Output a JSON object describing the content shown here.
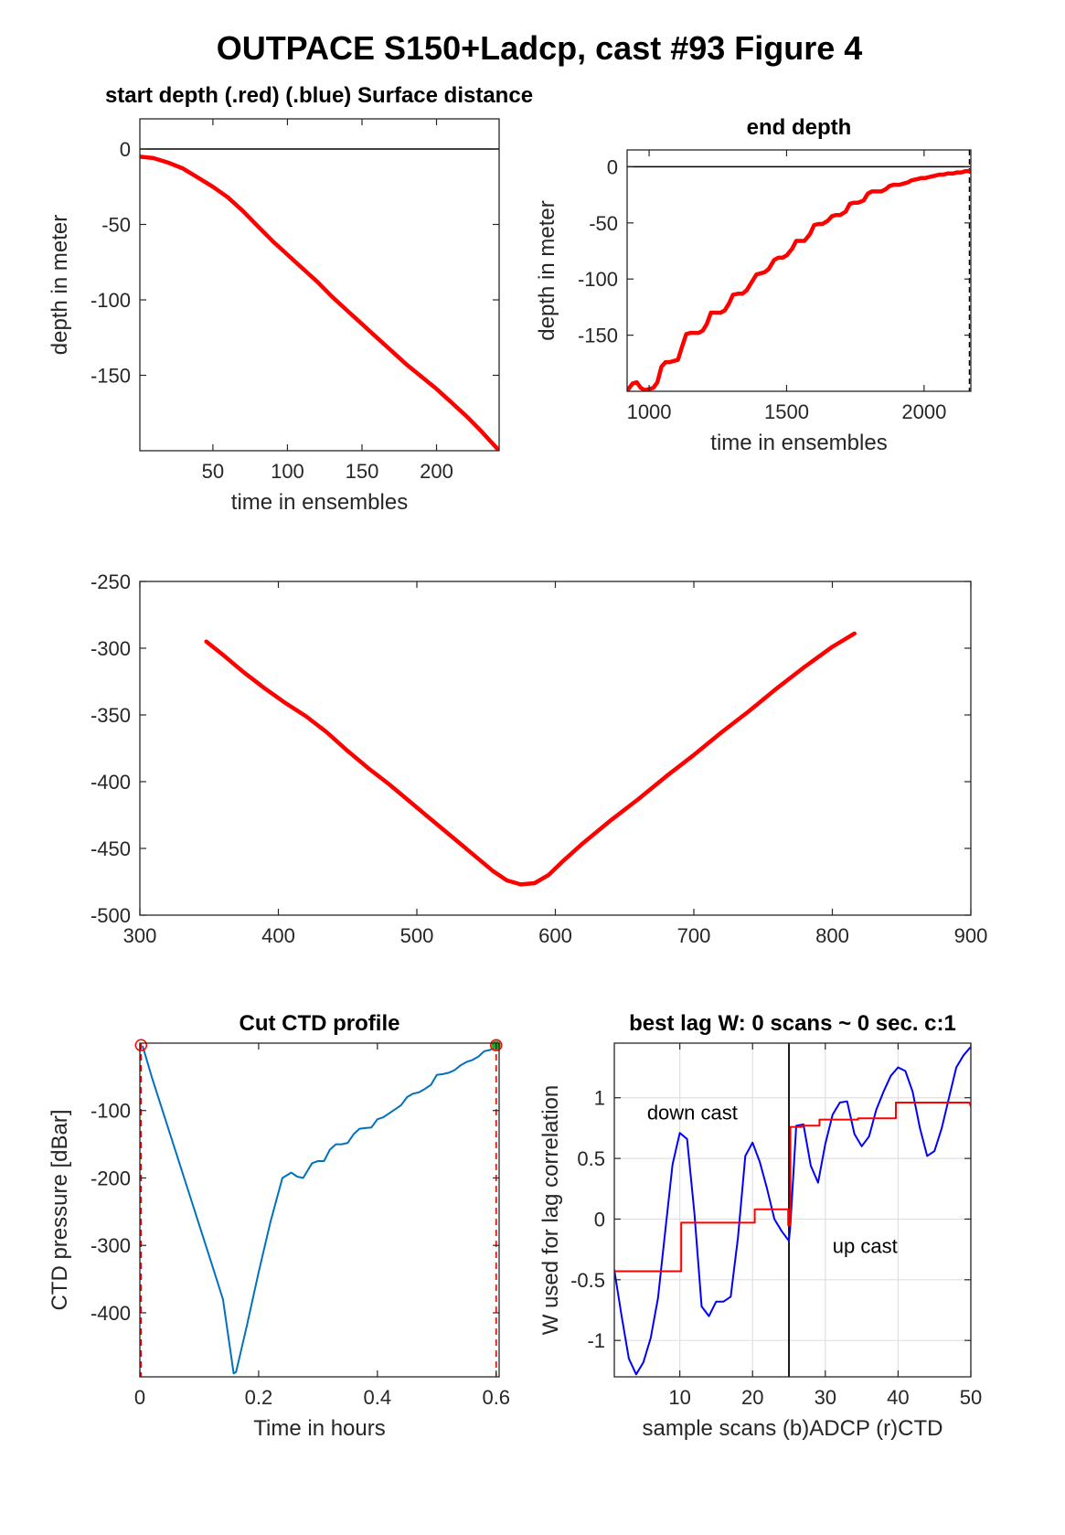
{
  "title": "OUTPACE S150+Ladcp, cast #93   Figure 4",
  "chart_data": [
    {
      "id": "start-depth",
      "type": "line",
      "title": "start depth (.red) (.blue) Surface distance",
      "xlabel": "time in ensembles",
      "ylabel": "depth in meter",
      "xlim": [
        1,
        242
      ],
      "ylim": [
        -200,
        20
      ],
      "xticks": [
        50,
        100,
        150,
        200
      ],
      "yticks": [
        0,
        -50,
        -100,
        -150
      ],
      "ref_line_y": 0,
      "color": "#ff0000",
      "series": [
        {
          "x": [
            1,
            10,
            20,
            30,
            40,
            50,
            60,
            70,
            80,
            90,
            100,
            110,
            120,
            130,
            140,
            150,
            160,
            170,
            180,
            190,
            200,
            210,
            220,
            230,
            242
          ],
          "y": [
            -5,
            -6,
            -9,
            -13,
            -19,
            -25,
            -32,
            -41,
            -51,
            -61,
            -70,
            -79,
            -88,
            -98,
            -107,
            -116,
            -125,
            -134,
            -143,
            -151,
            -159,
            -168,
            -177,
            -187,
            -200
          ]
        }
      ]
    },
    {
      "id": "end-depth",
      "type": "line",
      "title": "end depth",
      "xlabel": "time in ensembles",
      "ylabel": "depth in meter",
      "xlim": [
        920,
        2170
      ],
      "ylim": [
        -200,
        15
      ],
      "xticks": [
        1000,
        1500,
        2000
      ],
      "yticks": [
        0,
        -50,
        -100,
        -150
      ],
      "ref_line_y": 0,
      "vline_x": 2165,
      "color": "#ff0000",
      "series": [
        {
          "x": [
            925,
            940,
            955,
            970,
            985,
            1000,
            1015,
            1030,
            1045,
            1060,
            1075,
            1090,
            1105,
            1120,
            1135,
            1150,
            1165,
            1180,
            1195,
            1210,
            1225,
            1240,
            1260,
            1275,
            1290,
            1305,
            1325,
            1340,
            1355,
            1370,
            1390,
            1405,
            1420,
            1435,
            1455,
            1470,
            1485,
            1500,
            1520,
            1535,
            1550,
            1565,
            1585,
            1600,
            1615,
            1630,
            1650,
            1665,
            1680,
            1695,
            1715,
            1730,
            1745,
            1760,
            1780,
            1795,
            1810,
            1825,
            1845,
            1860,
            1875,
            1890,
            1910,
            1925,
            1940,
            1955,
            1975,
            1990,
            2005,
            2020,
            2040,
            2055,
            2070,
            2085,
            2105,
            2120,
            2135,
            2150,
            2160,
            2165
          ],
          "y": [
            -198,
            -193,
            -192,
            -197,
            -199,
            -198,
            -197,
            -192,
            -178,
            -174,
            -174,
            -173,
            -172,
            -160,
            -149,
            -148,
            -148,
            -148,
            -146,
            -140,
            -130,
            -130,
            -130,
            -128,
            -122,
            -114,
            -113,
            -113,
            -110,
            -104,
            -96,
            -95,
            -94,
            -91,
            -83,
            -81,
            -81,
            -79,
            -73,
            -66,
            -66,
            -66,
            -60,
            -52,
            -51,
            -51,
            -48,
            -44,
            -43,
            -43,
            -40,
            -33,
            -32,
            -32,
            -30,
            -24,
            -22,
            -22,
            -22,
            -20,
            -17,
            -16,
            -16,
            -15,
            -14,
            -12,
            -11,
            -10,
            -10,
            -9,
            -8,
            -7,
            -7,
            -6,
            -6,
            -5,
            -5,
            -4,
            -4,
            -4
          ]
        }
      ]
    },
    {
      "id": "distance-profile",
      "type": "line",
      "title": "",
      "xlabel": "",
      "ylabel": "",
      "xlim": [
        300,
        900
      ],
      "ylim": [
        -500,
        -250
      ],
      "xticks": [
        300,
        400,
        500,
        600,
        700,
        800,
        900
      ],
      "yticks": [
        -250,
        -300,
        -350,
        -400,
        -450,
        -500
      ],
      "color": "#ff0000",
      "series": [
        {
          "x": [
            348,
            360,
            375,
            390,
            405,
            420,
            435,
            450,
            465,
            480,
            495,
            510,
            525,
            540,
            555,
            565,
            575,
            585,
            595,
            605,
            620,
            640,
            660,
            680,
            700,
            720,
            740,
            760,
            780,
            800,
            816
          ],
          "y": [
            -295,
            -305,
            -318,
            -330,
            -341,
            -351,
            -363,
            -377,
            -390,
            -402,
            -415,
            -428,
            -441,
            -454,
            -467,
            -474,
            -477,
            -476,
            -470,
            -460,
            -446,
            -429,
            -413,
            -396,
            -380,
            -363,
            -347,
            -330,
            -314,
            -299,
            -289
          ]
        }
      ]
    },
    {
      "id": "cut-ctd",
      "type": "line",
      "title": "Cut CTD profile",
      "xlabel": "Time in hours",
      "ylabel": "CTD pressure [dBar]",
      "xlim": [
        0,
        0.605
      ],
      "ylim": [
        -495,
        0
      ],
      "xticks": [
        0,
        0.2,
        0.4,
        0.6
      ],
      "xtick_labels": [
        "0",
        "0.2",
        "0.4",
        "0.6"
      ],
      "yticks": [
        -100,
        -200,
        -300,
        -400
      ],
      "color": "#0072bd",
      "vlines_x": [
        0.002,
        0.6
      ],
      "start_marker": [
        0.002,
        -3
      ],
      "end_marker": [
        0.6,
        -3
      ],
      "series": [
        {
          "x": [
            0.005,
            0.02,
            0.04,
            0.06,
            0.08,
            0.1,
            0.12,
            0.14,
            0.158,
            0.162,
            0.18,
            0.2,
            0.22,
            0.24,
            0.255,
            0.265,
            0.275,
            0.29,
            0.3,
            0.31,
            0.32,
            0.33,
            0.34,
            0.35,
            0.36,
            0.37,
            0.38,
            0.39,
            0.4,
            0.41,
            0.42,
            0.43,
            0.44,
            0.45,
            0.46,
            0.47,
            0.48,
            0.49,
            0.5,
            0.51,
            0.52,
            0.53,
            0.54,
            0.55,
            0.56,
            0.57,
            0.58,
            0.59,
            0.6
          ],
          "y": [
            -5,
            -50,
            -105,
            -160,
            -215,
            -270,
            -325,
            -380,
            -490,
            -488,
            -420,
            -340,
            -265,
            -200,
            -192,
            -198,
            -200,
            -178,
            -175,
            -175,
            -158,
            -150,
            -150,
            -148,
            -135,
            -127,
            -126,
            -125,
            -113,
            -110,
            -104,
            -98,
            -92,
            -80,
            -75,
            -73,
            -68,
            -62,
            -47,
            -46,
            -44,
            -40,
            -33,
            -28,
            -25,
            -20,
            -12,
            -10,
            -5
          ]
        }
      ]
    },
    {
      "id": "best-lag",
      "type": "line",
      "title": "best lag W: 0 scans ~ 0 sec.  c:1",
      "xlabel": "sample scans (b)ADCP (r)CTD",
      "ylabel": "W used for lag correlation",
      "xlim": [
        1,
        50
      ],
      "ylim": [
        -1.3,
        1.45
      ],
      "xticks": [
        10,
        20,
        30,
        40,
        50
      ],
      "yticks": [
        -1,
        -0.5,
        0,
        0.5,
        1
      ],
      "yticklabels": [
        "-1",
        "-0.5",
        "0",
        "0.5",
        "1"
      ],
      "vline_x": 25,
      "grid": true,
      "annotations": [
        {
          "text": "down cast",
          "x": 5.5,
          "y": 0.82
        },
        {
          "text": "up cast",
          "x": 31,
          "y": -0.28
        }
      ],
      "series": [
        {
          "color": "#0000ff",
          "x": [
            1,
            2,
            3,
            4,
            5,
            6,
            7,
            8,
            9,
            10,
            11,
            12,
            13,
            14,
            15,
            16,
            17,
            18,
            19,
            20,
            21,
            22,
            23,
            24,
            25,
            25.2,
            26,
            27,
            28,
            29,
            30,
            31,
            32,
            33,
            34,
            35,
            36,
            37,
            38,
            39,
            40,
            41,
            42,
            43,
            44,
            45,
            46,
            47,
            48,
            49,
            50
          ],
          "y": [
            -0.42,
            -0.8,
            -1.15,
            -1.28,
            -1.18,
            -0.98,
            -0.65,
            -0.1,
            0.45,
            0.71,
            0.66,
            0.05,
            -0.72,
            -0.8,
            -0.68,
            -0.68,
            -0.64,
            -0.15,
            0.52,
            0.63,
            0.47,
            0.25,
            0.0,
            -0.1,
            -0.18,
            -0.05,
            0.77,
            0.78,
            0.44,
            0.3,
            0.62,
            0.86,
            0.96,
            0.97,
            0.7,
            0.6,
            0.68,
            0.9,
            1.05,
            1.18,
            1.25,
            1.22,
            1.05,
            0.75,
            0.52,
            0.56,
            0.75,
            1.0,
            1.25,
            1.35,
            1.42
          ]
        },
        {
          "color": "#ff0000",
          "x": [
            1,
            10.2,
            10.2,
            20.3,
            20.3,
            24.9,
            24.9,
            25.2,
            25.2,
            26.8,
            26.8,
            29.2,
            29.2,
            34.5,
            34.5,
            39.7,
            39.7,
            49.8,
            50
          ],
          "y": [
            -0.43,
            -0.43,
            -0.03,
            -0.03,
            0.08,
            0.08,
            -0.05,
            -0.05,
            0.76,
            0.76,
            0.77,
            0.77,
            0.82,
            0.82,
            0.83,
            0.83,
            0.96,
            0.96,
            0.93
          ]
        }
      ]
    }
  ]
}
